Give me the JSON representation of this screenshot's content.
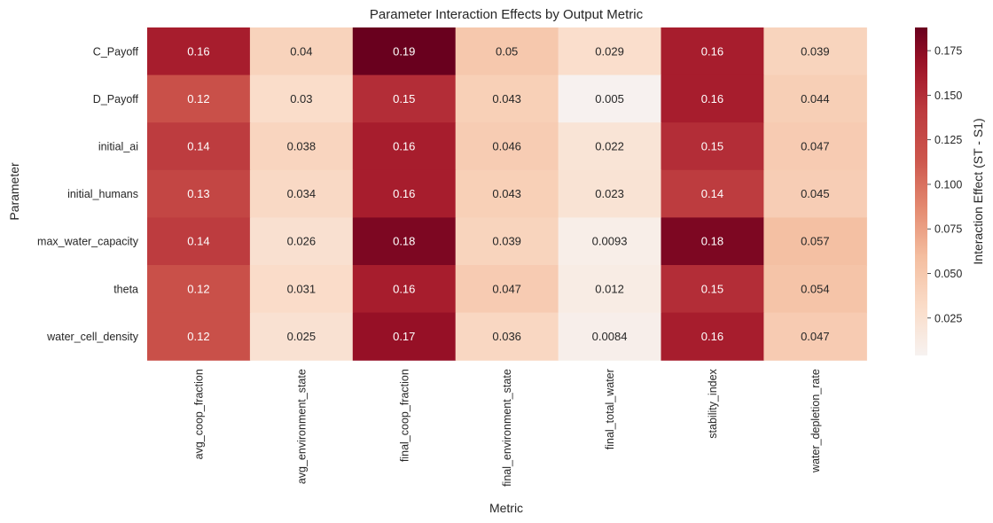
{
  "chart_data": {
    "type": "heatmap",
    "title": "Parameter Interaction Effects by Output Metric",
    "xlabel": "Metric",
    "ylabel": "Parameter",
    "x_categories": [
      "avg_coop_fraction",
      "avg_environment_state",
      "final_coop_fraction",
      "final_environment_state",
      "final_total_water",
      "stability_index",
      "water_depletion_rate"
    ],
    "y_categories": [
      "C_Payoff",
      "D_Payoff",
      "initial_ai",
      "initial_humans",
      "max_water_capacity",
      "theta",
      "water_cell_density"
    ],
    "values": [
      [
        0.16,
        0.04,
        0.19,
        0.05,
        0.029,
        0.16,
        0.039
      ],
      [
        0.12,
        0.03,
        0.15,
        0.043,
        0.005,
        0.16,
        0.044
      ],
      [
        0.14,
        0.038,
        0.16,
        0.046,
        0.022,
        0.15,
        0.047
      ],
      [
        0.13,
        0.034,
        0.16,
        0.043,
        0.023,
        0.14,
        0.045
      ],
      [
        0.14,
        0.026,
        0.18,
        0.039,
        0.0093,
        0.18,
        0.057
      ],
      [
        0.12,
        0.031,
        0.16,
        0.047,
        0.012,
        0.15,
        0.054
      ],
      [
        0.12,
        0.025,
        0.17,
        0.036,
        0.0084,
        0.16,
        0.047
      ]
    ],
    "cell_labels": [
      [
        "0.16",
        "0.04",
        "0.19",
        "0.05",
        "0.029",
        "0.16",
        "0.039"
      ],
      [
        "0.12",
        "0.03",
        "0.15",
        "0.043",
        "0.005",
        "0.16",
        "0.044"
      ],
      [
        "0.14",
        "0.038",
        "0.16",
        "0.046",
        "0.022",
        "0.15",
        "0.047"
      ],
      [
        "0.13",
        "0.034",
        "0.16",
        "0.043",
        "0.023",
        "0.14",
        "0.045"
      ],
      [
        "0.14",
        "0.026",
        "0.18",
        "0.039",
        "0.0093",
        "0.18",
        "0.057"
      ],
      [
        "0.12",
        "0.031",
        "0.16",
        "0.047",
        "0.012",
        "0.15",
        "0.054"
      ],
      [
        "0.12",
        "0.025",
        "0.17",
        "0.036",
        "0.0084",
        "0.16",
        "0.047"
      ]
    ],
    "colormap": "RdBu_r (white to dark red)",
    "colorbar": {
      "label": "Interaction Effect (ST - S1)",
      "range": [
        0.004,
        0.188
      ],
      "ticks": [
        "0.025",
        "0.050",
        "0.075",
        "0.100",
        "0.125",
        "0.150",
        "0.175"
      ],
      "tick_values": [
        0.025,
        0.05,
        0.075,
        0.1,
        0.125,
        0.15,
        0.175
      ]
    },
    "grid": false
  }
}
